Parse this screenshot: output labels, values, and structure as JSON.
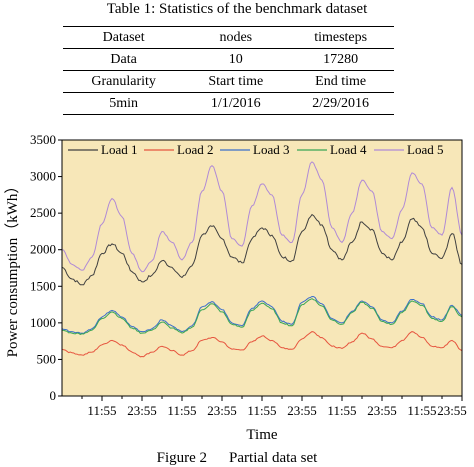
{
  "table": {
    "caption": "Table 1: Statistics of the benchmark dataset",
    "rows": [
      [
        "Dataset",
        "nodes",
        "timesteps"
      ],
      [
        "Data",
        "10",
        "17280"
      ],
      [
        "Granularity",
        "Start time",
        "End time"
      ],
      [
        "5min",
        "1/1/2016",
        "2/29/2016"
      ]
    ]
  },
  "figure": {
    "caption_label": "Figure 2",
    "caption_text": "Partial data set"
  },
  "chart_data": {
    "type": "line",
    "title": "",
    "xlabel": "Time",
    "ylabel": "Power consumption（kWh）",
    "x": [
      0,
      3,
      6,
      9,
      12,
      15,
      18,
      21,
      24,
      27,
      30,
      33,
      36,
      39,
      42,
      45,
      48,
      51,
      54,
      57,
      60,
      63,
      66,
      69,
      72,
      75,
      78,
      81,
      84,
      87,
      90,
      93,
      96,
      99,
      102,
      105,
      108,
      111,
      114,
      117,
      120
    ],
    "x_tick_labels": [
      "11:55",
      "23:55",
      "11:55",
      "23:55",
      "11:55",
      "23:55",
      "11:55",
      "23:55",
      "11:55",
      "23:55"
    ],
    "x_tick_positions": [
      12,
      24,
      36,
      48,
      60,
      72,
      84,
      96,
      108,
      120
    ],
    "xlim": [
      0,
      120
    ],
    "ylim": [
      0,
      3500
    ],
    "yticks": [
      0,
      500,
      1000,
      1500,
      2000,
      2500,
      3000,
      3500
    ],
    "grid": false,
    "legend": "top",
    "background": "#f7e7b8",
    "series": [
      {
        "name": "Load 1",
        "color": "#404040",
        "values": [
          1760,
          1600,
          1520,
          1650,
          1950,
          2080,
          1950,
          1700,
          1560,
          1650,
          1850,
          1760,
          1620,
          1780,
          2200,
          2320,
          2150,
          1900,
          1820,
          2150,
          2300,
          2200,
          1900,
          1850,
          2250,
          2480,
          2340,
          2000,
          1860,
          2100,
          2380,
          2280,
          1950,
          1860,
          2100,
          2420,
          2300,
          1950,
          1880,
          2220,
          1800
        ]
      },
      {
        "name": "Load 2",
        "color": "#e6553f",
        "values": [
          640,
          590,
          560,
          600,
          700,
          760,
          700,
          600,
          540,
          600,
          680,
          620,
          560,
          620,
          760,
          800,
          740,
          640,
          630,
          740,
          820,
          760,
          660,
          640,
          780,
          880,
          800,
          680,
          650,
          740,
          860,
          780,
          680,
          660,
          760,
          880,
          800,
          680,
          660,
          760,
          620
        ]
      },
      {
        "name": "Load 3",
        "color": "#3b6fc9",
        "values": [
          920,
          880,
          860,
          920,
          1080,
          1170,
          1080,
          950,
          880,
          920,
          1040,
          960,
          880,
          960,
          1220,
          1290,
          1180,
          1000,
          960,
          1200,
          1300,
          1220,
          1020,
          980,
          1280,
          1360,
          1260,
          1060,
          1000,
          1160,
          1300,
          1220,
          1040,
          1000,
          1160,
          1320,
          1260,
          1080,
          1040,
          1240,
          1100
        ]
      },
      {
        "name": "Load 4",
        "color": "#3aa655",
        "values": [
          900,
          860,
          850,
          900,
          1060,
          1150,
          1060,
          930,
          860,
          900,
          1010,
          930,
          860,
          940,
          1180,
          1260,
          1150,
          980,
          940,
          1170,
          1270,
          1190,
          1000,
          960,
          1250,
          1330,
          1230,
          1040,
          980,
          1140,
          1280,
          1200,
          1020,
          980,
          1140,
          1300,
          1240,
          1060,
          1020,
          1220,
          1080
        ]
      },
      {
        "name": "Load 5",
        "color": "#b08ad6",
        "values": [
          2000,
          1800,
          1720,
          1900,
          2350,
          2700,
          2450,
          1950,
          1700,
          1850,
          2250,
          2100,
          1860,
          2100,
          2800,
          3150,
          2800,
          2150,
          2050,
          2600,
          2900,
          2750,
          2200,
          2100,
          2750,
          3200,
          2950,
          2300,
          2100,
          2500,
          2950,
          2800,
          2250,
          2150,
          2550,
          3050,
          2900,
          2300,
          2200,
          2850,
          2200
        ]
      }
    ]
  }
}
